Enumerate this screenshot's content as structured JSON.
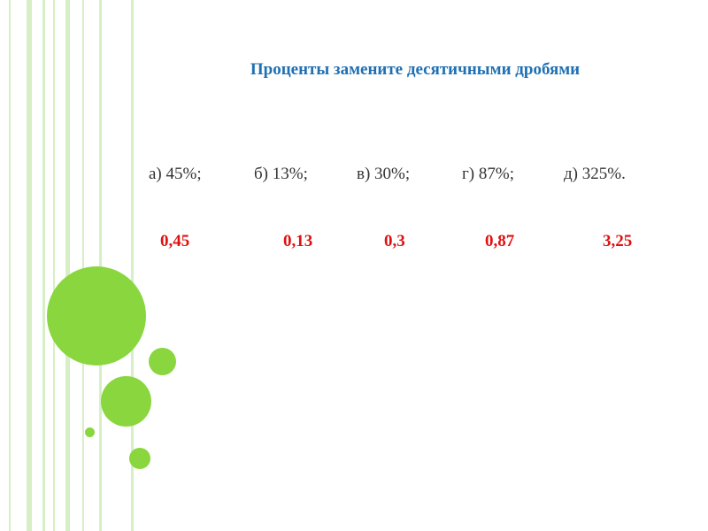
{
  "slide": {
    "title": "Проценты замените десятичными дробями",
    "questions": [
      "а) 45%;",
      "б) 13%;",
      "в) 30%;",
      "г) 87%;",
      "д) 325%."
    ],
    "answers": [
      "0,45",
      "0,13",
      "0,3",
      "0,87",
      "3,25"
    ]
  },
  "colors": {
    "title": "#1f6fb3",
    "questions": "#333333",
    "answers": "#e01010",
    "circles": "#8ad63e",
    "stripes": "#d6efc4"
  }
}
